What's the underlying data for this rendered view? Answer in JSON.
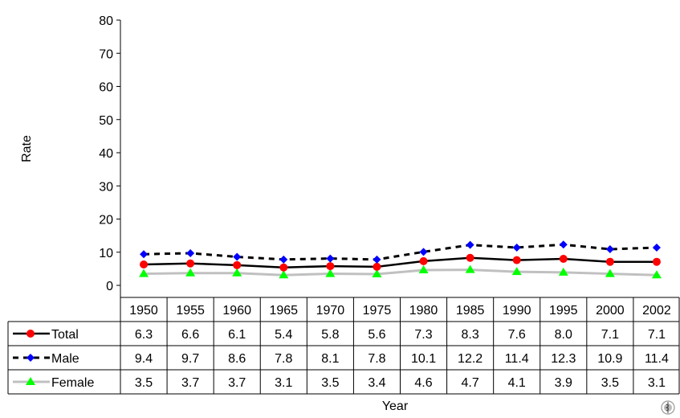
{
  "chart_data": {
    "type": "line",
    "title": "",
    "xlabel": "Year",
    "ylabel": "Rate",
    "ylim": [
      0,
      80
    ],
    "yticks": [
      "0",
      "10",
      "20",
      "30",
      "40",
      "50",
      "60",
      "70",
      "80"
    ],
    "grid": false,
    "legend": "data-table-rows",
    "categories": [
      "1950",
      "1955",
      "1960",
      "1965",
      "1970",
      "1975",
      "1980",
      "1985",
      "1990",
      "1995",
      "2000",
      "2002"
    ],
    "series": [
      {
        "name": "Total",
        "values": [
          6.3,
          6.6,
          6.1,
          5.4,
          5.8,
          5.6,
          7.3,
          8.3,
          7.6,
          8.0,
          7.1,
          7.1
        ],
        "labels": [
          "6.3",
          "6.6",
          "6.1",
          "5.4",
          "5.8",
          "5.6",
          "7.3",
          "8.3",
          "7.6",
          "8.0",
          "7.1",
          "7.1"
        ],
        "color": "#000000",
        "marker_color": "#ff0000",
        "marker": "circle",
        "line_style": "solid"
      },
      {
        "name": "Male",
        "values": [
          9.4,
          9.7,
          8.6,
          7.8,
          8.1,
          7.8,
          10.1,
          12.2,
          11.4,
          12.3,
          10.9,
          11.4
        ],
        "labels": [
          "9.4",
          "9.7",
          "8.6",
          "7.8",
          "8.1",
          "7.8",
          "10.1",
          "12.2",
          "11.4",
          "12.3",
          "10.9",
          "11.4"
        ],
        "color": "#000000",
        "marker_color": "#0000ff",
        "marker": "diamond",
        "line_style": "dashed"
      },
      {
        "name": "Female",
        "values": [
          3.5,
          3.7,
          3.7,
          3.1,
          3.5,
          3.4,
          4.6,
          4.7,
          4.1,
          3.9,
          3.5,
          3.1
        ],
        "labels": [
          "3.5",
          "3.7",
          "3.7",
          "3.1",
          "3.5",
          "3.4",
          "4.6",
          "4.7",
          "4.1",
          "3.9",
          "3.5",
          "3.1"
        ],
        "color": "#c0c0c0",
        "marker_color": "#00ff00",
        "marker": "triangle",
        "line_style": "solid"
      }
    ]
  },
  "logo": {
    "icon": "who-emblem-icon"
  }
}
